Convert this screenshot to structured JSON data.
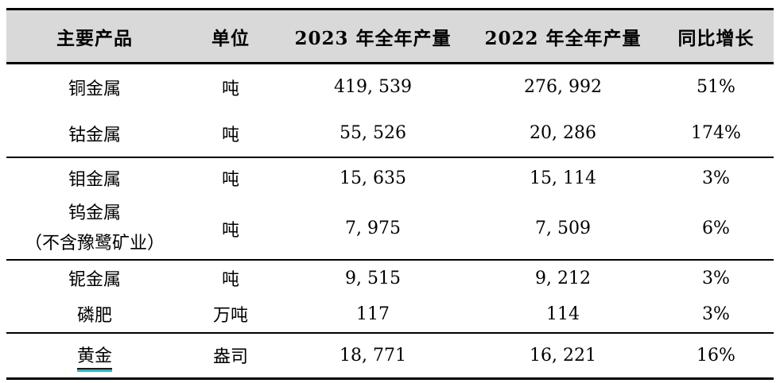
{
  "table": {
    "header_bg": "#d9d9d9",
    "border_color": "#000000",
    "gold_underline_color": "#30b8c4",
    "columns": [
      {
        "label": "主要产品"
      },
      {
        "label": "单位"
      },
      {
        "label": "2023 年全年产量"
      },
      {
        "label": "2022 年全年产量"
      },
      {
        "label": "同比增长"
      }
    ],
    "rows": [
      {
        "product": "铜金属",
        "unit": "吨",
        "prod_2023": "419, 539",
        "prod_2022": "276, 992",
        "yoy": "51%"
      },
      {
        "product": "钴金属",
        "unit": "吨",
        "prod_2023": "55, 526",
        "prod_2022": "20, 286",
        "yoy": "174%"
      },
      {
        "product": "钼金属",
        "unit": "吨",
        "prod_2023": "15, 635",
        "prod_2022": "15, 114",
        "yoy": "3%"
      },
      {
        "product": "钨金属\n（不含豫鹭矿业）",
        "unit": "吨",
        "prod_2023": "7, 975",
        "prod_2022": "7, 509",
        "yoy": "6%"
      },
      {
        "product": "铌金属",
        "unit": "吨",
        "prod_2023": "9, 515",
        "prod_2022": "9, 212",
        "yoy": "3%"
      },
      {
        "product": "磷肥",
        "unit": "万吨",
        "prod_2023": "117",
        "prod_2022": "114",
        "yoy": "3%"
      },
      {
        "product": "黄金",
        "unit": "盎司",
        "prod_2023": "18, 771",
        "prod_2022": "16, 221",
        "yoy": "16%"
      }
    ]
  }
}
